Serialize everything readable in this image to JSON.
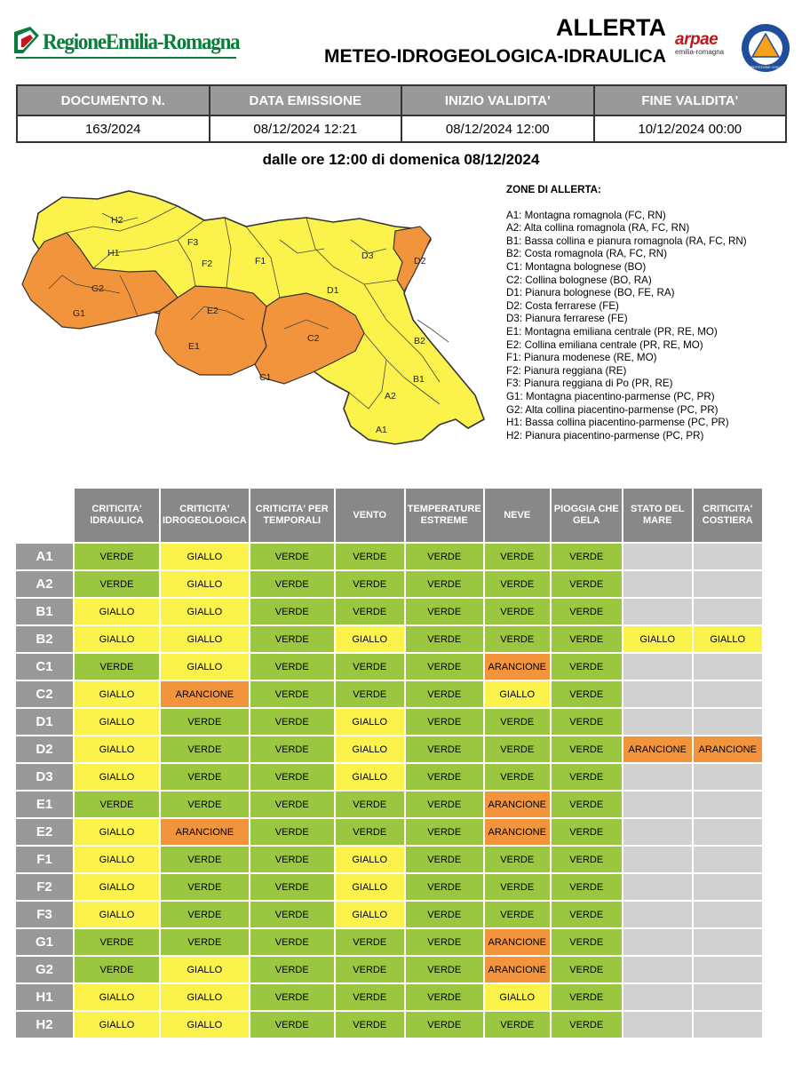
{
  "header": {
    "org_name": "RegioneEmilia-Romagna",
    "title_line1": "ALLERTA",
    "title_line2": "METEO-IDROGEOLOGICA-IDRAULICA",
    "arpae_name": "arpae",
    "arpae_sub": "emilia-romagna",
    "pc_logo_text": "PROTEZIONE CIVILE"
  },
  "document": {
    "headers": [
      "DOCUMENTO N.",
      "DATA EMISSIONE",
      "INIZIO VALIDITA'",
      "FINE VALIDITA'"
    ],
    "values": [
      "163/2024",
      "08/12/2024 12:21",
      "08/12/2024 12:00",
      "10/12/2024 00:00"
    ]
  },
  "validity_text": "dalle ore 12:00 di domenica 08/12/2024",
  "map": {
    "labels": [
      "H2",
      "H1",
      "F3",
      "F2",
      "F1",
      "D3",
      "D2",
      "G2",
      "G1",
      "E2",
      "D1",
      "E1",
      "C2",
      "C1",
      "B2",
      "B1",
      "A2",
      "A1"
    ],
    "colors": {
      "yellow": "#fbf24c",
      "orange": "#f2943b"
    }
  },
  "legend": {
    "title": "ZONE DI ALLERTA:",
    "items": [
      "A1: Montagna romagnola (FC, RN)",
      "A2: Alta collina romagnola (RA, FC, RN)",
      "B1: Bassa collina e pianura romagnola (RA, FC, RN)",
      "B2: Costa romagnola (RA, FC, RN)",
      "C1: Montagna bolognese (BO)",
      "C2: Collina bolognese (BO, RA)",
      "D1: Pianura bolognese (BO, FE, RA)",
      "D2: Costa ferrarese (FE)",
      "D3: Pianura ferrarese (FE)",
      "E1: Montagna emiliana centrale (PR, RE, MO)",
      "E2: Collina emiliana centrale (PR, RE, MO)",
      "F1: Pianura modenese (RE, MO)",
      "F2: Pianura reggiana (RE)",
      "F3: Pianura reggiana di Po (PR, RE)",
      "G1: Montagna piacentino-parmense (PC, PR)",
      "G2: Alta collina piacentino-parmense (PC, PR)",
      "H1: Bassa collina piacentino-parmense (PC, PR)",
      "H2: Pianura piacentino-parmense (PC, PR)"
    ]
  },
  "alert_table": {
    "columns": [
      "CRITICITA' IDRAULICA",
      "CRITICITA' IDROGEOLOGICA",
      "CRITICITA' PER TEMPORALI",
      "VENTO",
      "TEMPERATURE ESTREME",
      "NEVE",
      "PIOGGIA CHE GELA",
      "STATO DEL MARE",
      "CRITICITA' COSTIERA"
    ],
    "rows": [
      {
        "zone": "A1",
        "values": [
          "VERDE",
          "GIALLO",
          "VERDE",
          "VERDE",
          "VERDE",
          "VERDE",
          "VERDE",
          "",
          ""
        ]
      },
      {
        "zone": "A2",
        "values": [
          "VERDE",
          "GIALLO",
          "VERDE",
          "VERDE",
          "VERDE",
          "VERDE",
          "VERDE",
          "",
          ""
        ]
      },
      {
        "zone": "B1",
        "values": [
          "GIALLO",
          "GIALLO",
          "VERDE",
          "VERDE",
          "VERDE",
          "VERDE",
          "VERDE",
          "",
          ""
        ]
      },
      {
        "zone": "B2",
        "values": [
          "GIALLO",
          "GIALLO",
          "VERDE",
          "GIALLO",
          "VERDE",
          "VERDE",
          "VERDE",
          "GIALLO",
          "GIALLO"
        ]
      },
      {
        "zone": "C1",
        "values": [
          "VERDE",
          "GIALLO",
          "VERDE",
          "VERDE",
          "VERDE",
          "ARANCIONE",
          "VERDE",
          "",
          ""
        ]
      },
      {
        "zone": "C2",
        "values": [
          "GIALLO",
          "ARANCIONE",
          "VERDE",
          "VERDE",
          "VERDE",
          "GIALLO",
          "VERDE",
          "",
          ""
        ]
      },
      {
        "zone": "D1",
        "values": [
          "GIALLO",
          "VERDE",
          "VERDE",
          "GIALLO",
          "VERDE",
          "VERDE",
          "VERDE",
          "",
          ""
        ]
      },
      {
        "zone": "D2",
        "values": [
          "GIALLO",
          "VERDE",
          "VERDE",
          "GIALLO",
          "VERDE",
          "VERDE",
          "VERDE",
          "ARANCIONE",
          "ARANCIONE"
        ]
      },
      {
        "zone": "D3",
        "values": [
          "GIALLO",
          "VERDE",
          "VERDE",
          "GIALLO",
          "VERDE",
          "VERDE",
          "VERDE",
          "",
          ""
        ]
      },
      {
        "zone": "E1",
        "values": [
          "VERDE",
          "VERDE",
          "VERDE",
          "VERDE",
          "VERDE",
          "ARANCIONE",
          "VERDE",
          "",
          ""
        ]
      },
      {
        "zone": "E2",
        "values": [
          "GIALLO",
          "ARANCIONE",
          "VERDE",
          "VERDE",
          "VERDE",
          "ARANCIONE",
          "VERDE",
          "",
          ""
        ]
      },
      {
        "zone": "F1",
        "values": [
          "GIALLO",
          "VERDE",
          "VERDE",
          "GIALLO",
          "VERDE",
          "VERDE",
          "VERDE",
          "",
          ""
        ]
      },
      {
        "zone": "F2",
        "values": [
          "GIALLO",
          "VERDE",
          "VERDE",
          "GIALLO",
          "VERDE",
          "VERDE",
          "VERDE",
          "",
          ""
        ]
      },
      {
        "zone": "F3",
        "values": [
          "GIALLO",
          "VERDE",
          "VERDE",
          "GIALLO",
          "VERDE",
          "VERDE",
          "VERDE",
          "",
          ""
        ]
      },
      {
        "zone": "G1",
        "values": [
          "VERDE",
          "VERDE",
          "VERDE",
          "VERDE",
          "VERDE",
          "ARANCIONE",
          "VERDE",
          "",
          ""
        ]
      },
      {
        "zone": "G2",
        "values": [
          "VERDE",
          "GIALLO",
          "VERDE",
          "VERDE",
          "VERDE",
          "ARANCIONE",
          "VERDE",
          "",
          ""
        ]
      },
      {
        "zone": "H1",
        "values": [
          "GIALLO",
          "GIALLO",
          "VERDE",
          "VERDE",
          "VERDE",
          "GIALLO",
          "VERDE",
          "",
          ""
        ]
      },
      {
        "zone": "H2",
        "values": [
          "GIALLO",
          "GIALLO",
          "VERDE",
          "VERDE",
          "VERDE",
          "VERDE",
          "VERDE",
          "",
          ""
        ]
      }
    ],
    "level_colors": {
      "VERDE": "#9bc63f",
      "GIALLO": "#fbf24c",
      "ARANCIONE": "#f2943b",
      "NONE": "#d1d1d1"
    }
  }
}
